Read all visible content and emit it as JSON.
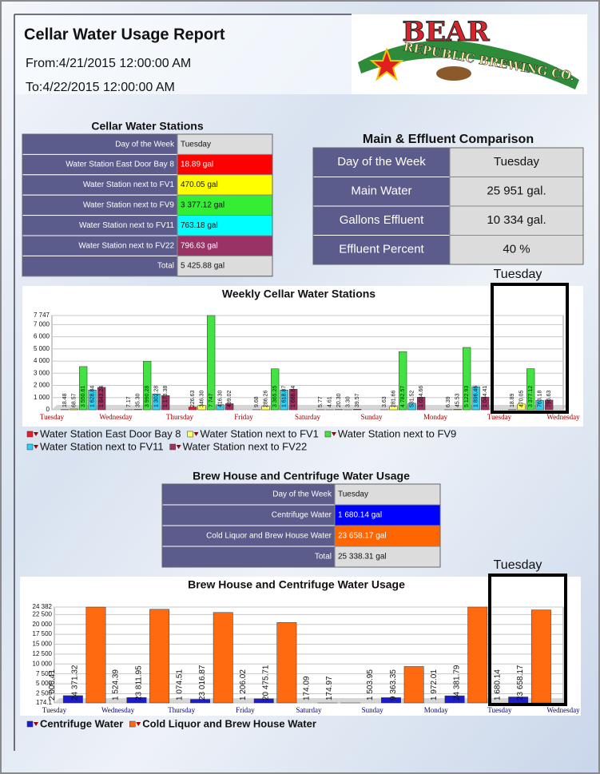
{
  "header": {
    "title": "Cellar Water Usage Report",
    "from": "From:4/21/2015 12:00:00 AM",
    "to": "To:4/22/2015 12:00:00 AM",
    "logo": {
      "name": "BEAR",
      "sub": "REPUBLIC BREWING CO."
    }
  },
  "tables": [
    {
      "title": "Cellar Water Stations",
      "rows": [
        {
          "label": "Day of the Week",
          "value": "Tuesday"
        },
        {
          "label": "Water Station East Door Bay 8",
          "value": "18.89 gal",
          "color": "#ff0000"
        },
        {
          "label": "Water Station next to FV1",
          "value": "470.05 gal",
          "color": "#ffff00"
        },
        {
          "label": "Water Station next to FV9",
          "value": "3 377.12 gal",
          "color": "#33ee33"
        },
        {
          "label": "Water Station next to FV11",
          "value": "763.18 gal",
          "color": "#00ffff"
        },
        {
          "label": "Water Station next to FV22",
          "value": "796.63 gal",
          "color": "#993366"
        },
        {
          "label": "Total",
          "value": "5 425.88 gal"
        }
      ]
    },
    {
      "title": "Main & Effluent Comparison",
      "rows": [
        {
          "label": "Day of the Week",
          "value": "Tuesday"
        },
        {
          "label": "Main Water",
          "value": "25 951 gal."
        },
        {
          "label": "Gallons Effluent",
          "value": "10 334 gal."
        },
        {
          "label": "Effluent Percent",
          "value": "40 %"
        }
      ]
    },
    {
      "title": "Brew House and Centrifuge Water Usage",
      "rows": [
        {
          "label": "Day of the Week",
          "value": "Tuesday"
        },
        {
          "label": "Centrifuge Water",
          "value": "1 680.14 gal",
          "color": "#0000ff"
        },
        {
          "label": "Cold Liquor and Brew House Water",
          "value": "23 658.17 gal",
          "color": "#ff6600"
        },
        {
          "label": "Total",
          "value": "25 338.31 gal"
        }
      ]
    }
  ],
  "chart_data": [
    {
      "type": "bar",
      "title": "Weekly Cellar Water Stations",
      "annotation": "Tuesday",
      "categories": [
        "Tuesday",
        "Wednesday",
        "Thursday",
        "Friday",
        "Saturday",
        "Sunday",
        "Monday",
        "Tuesday",
        "Wednesday"
      ],
      "ylim": [
        0,
        7747
      ],
      "yticks": [
        0,
        {
          "value": 1000,
          "label": "1 000"
        },
        {
          "value": 2000,
          "label": "2 000"
        },
        {
          "value": 3000,
          "label": "3 000"
        },
        {
          "value": 4000,
          "label": "4 000"
        },
        {
          "value": 5000,
          "label": "5 000"
        },
        {
          "value": 6000,
          "label": "6 000"
        },
        {
          "value": 7000,
          "label": "7 000"
        },
        {
          "value": 7747,
          "label": "7 747"
        }
      ],
      "grid": true,
      "series": [
        {
          "name": "Water Station East Door Bay 8",
          "color": "#e02030",
          "values": [
            18.48,
            7.17,
            226.63,
            9.68,
            5.77,
            3.63,
            6.39,
            18.89,
            null
          ],
          "value_labels": [
            "18.48",
            "7.17",
            "226.63",
            "9.68",
            "5.77",
            "3.63",
            "6.39",
            "18.89",
            null
          ]
        },
        {
          "name": "Water Station next to FV1",
          "color": "#ffff66",
          "values": [
            68.57,
            35.3,
            346.3,
            286.26,
            4.61,
            281.66,
            45.53,
            470.05,
            null
          ],
          "value_labels": [
            "68.57",
            "35.30",
            "346.30",
            "286.26",
            "4.61",
            "281.66",
            "45.53",
            "470.05",
            null
          ]
        },
        {
          "name": "Water Station next to FV9",
          "color": "#44e044",
          "values": [
            3550.61,
            3990.28,
            7747,
            3365.25,
            20.3,
            4782.57,
            5122.93,
            3377.12,
            null
          ],
          "value_labels": [
            "3 550.61",
            "3 990.28",
            "7 747",
            "3 365.25",
            "20.30",
            "4 782.57",
            "5 122.93",
            "3 377.12",
            null
          ]
        },
        {
          "name": "Water Station next to FV11",
          "color": "#33ccee",
          "values": [
            1628.84,
            1302.28,
            416.3,
            1618.87,
            3.3,
            531.52,
            1896.46,
            763.18,
            null
          ],
          "value_labels": [
            "1 628.84",
            "1 302.28",
            "416.30",
            "1 618.87",
            "3.30",
            "531.52",
            "1 896.46",
            "763.18",
            null
          ]
        },
        {
          "name": "Water Station next to FV22",
          "color": "#a03060",
          "values": [
            1843.24,
            1173.38,
            499.02,
            1686.64,
            39.57,
            1034.66,
            1044.41,
            796.63,
            null
          ],
          "value_labels": [
            "1 843.24",
            "1 173.38",
            "499.02",
            "1 686.64",
            "39.57",
            "1 034.66",
            "1 044.41",
            "796.63",
            null
          ]
        }
      ]
    },
    {
      "type": "bar",
      "title": "Brew House and Centrifuge Water Usage",
      "annotation": "Tuesday",
      "categories": [
        "Tuesday",
        "Wednesday",
        "Thursday",
        "Friday",
        "Saturday",
        "Sunday",
        "Monday",
        "Tuesday",
        "Wednesday"
      ],
      "ylim": [
        174.1,
        24382
      ],
      "yticks": [
        174.1,
        {
          "value": 2500,
          "label": "2 500"
        },
        {
          "value": 5000,
          "label": "5 000"
        },
        {
          "value": 7500,
          "label": "7 500"
        },
        {
          "value": 10000,
          "label": "10 000"
        },
        {
          "value": 12500,
          "label": "12 500"
        },
        {
          "value": 15000,
          "label": "15 000"
        },
        {
          "value": 17500,
          "label": "17 500"
        },
        {
          "value": 20000,
          "label": "20 000"
        },
        {
          "value": 22500,
          "label": "22 500"
        },
        {
          "value": 24382,
          "label": "24 382"
        }
      ],
      "grid": true,
      "series": [
        {
          "name": "Centrifuge Water",
          "color": "#1c1ccc",
          "values": [
            2006.41,
            1524.39,
            1074.51,
            1206.02,
            174.09,
            1503.95,
            1972.01,
            1680.14,
            null
          ],
          "value_labels": [
            "2 006.41",
            "1 524.39",
            "1 074.51",
            "1 206.02",
            "174.09",
            "1 503.95",
            "1 972.01",
            "1 680.14",
            null
          ]
        },
        {
          "name": "Cold Liquor and Brew House Water",
          "color": "#ff6a10",
          "values": [
            24371.32,
            23811.95,
            23016.87,
            20475.71,
            174.97,
            9363.35,
            24381.79,
            23658.17,
            null
          ],
          "value_labels": [
            "24 371.32",
            "23 811.95",
            "23 016.87",
            "20 475.71",
            "174.97",
            "9 363.35",
            "24 381.79",
            "23 658.17",
            null
          ]
        }
      ]
    }
  ]
}
